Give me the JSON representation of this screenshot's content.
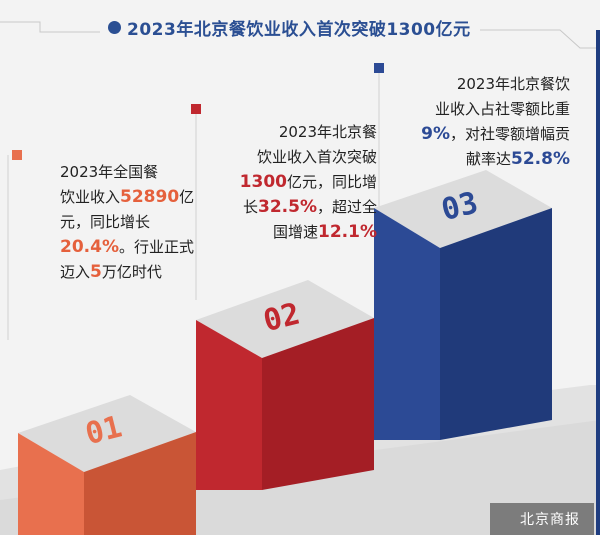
{
  "title": "2023年北京餐饮业收入首次突破1300亿元",
  "colors": {
    "accent_blue": "#2b4f93",
    "box1": "#e8704e",
    "box2": "#c0282f",
    "box3": "#2c4a95"
  },
  "items": [
    {
      "number": "01",
      "lines": [
        {
          "t": "2023年全国餐"
        },
        {
          "t": "饮业收入",
          "h": "52890",
          "a": "亿"
        },
        {
          "t": "元，同比增长"
        },
        {
          "h": "20.4%",
          "a": "。行业正式"
        },
        {
          "t": "迈入",
          "h": "5",
          "a": "万亿时代"
        }
      ]
    },
    {
      "number": "02",
      "lines": [
        {
          "t": "2023年北京餐"
        },
        {
          "t": "饮业收入首次突破"
        },
        {
          "h": "1300",
          "a": "亿元，同比增"
        },
        {
          "t": "长",
          "h": "32.5%",
          "a": "，超过全"
        },
        {
          "t": "国增速",
          "h": "12.1%"
        }
      ]
    },
    {
      "number": "03",
      "lines": [
        {
          "t": "2023年北京餐饮"
        },
        {
          "t": "业收入占社零额比重"
        },
        {
          "h": "9%",
          "a": "，对社零额增幅贡"
        },
        {
          "t": "献率达",
          "h": "52.8%"
        }
      ]
    }
  ],
  "footer": "北京商报"
}
